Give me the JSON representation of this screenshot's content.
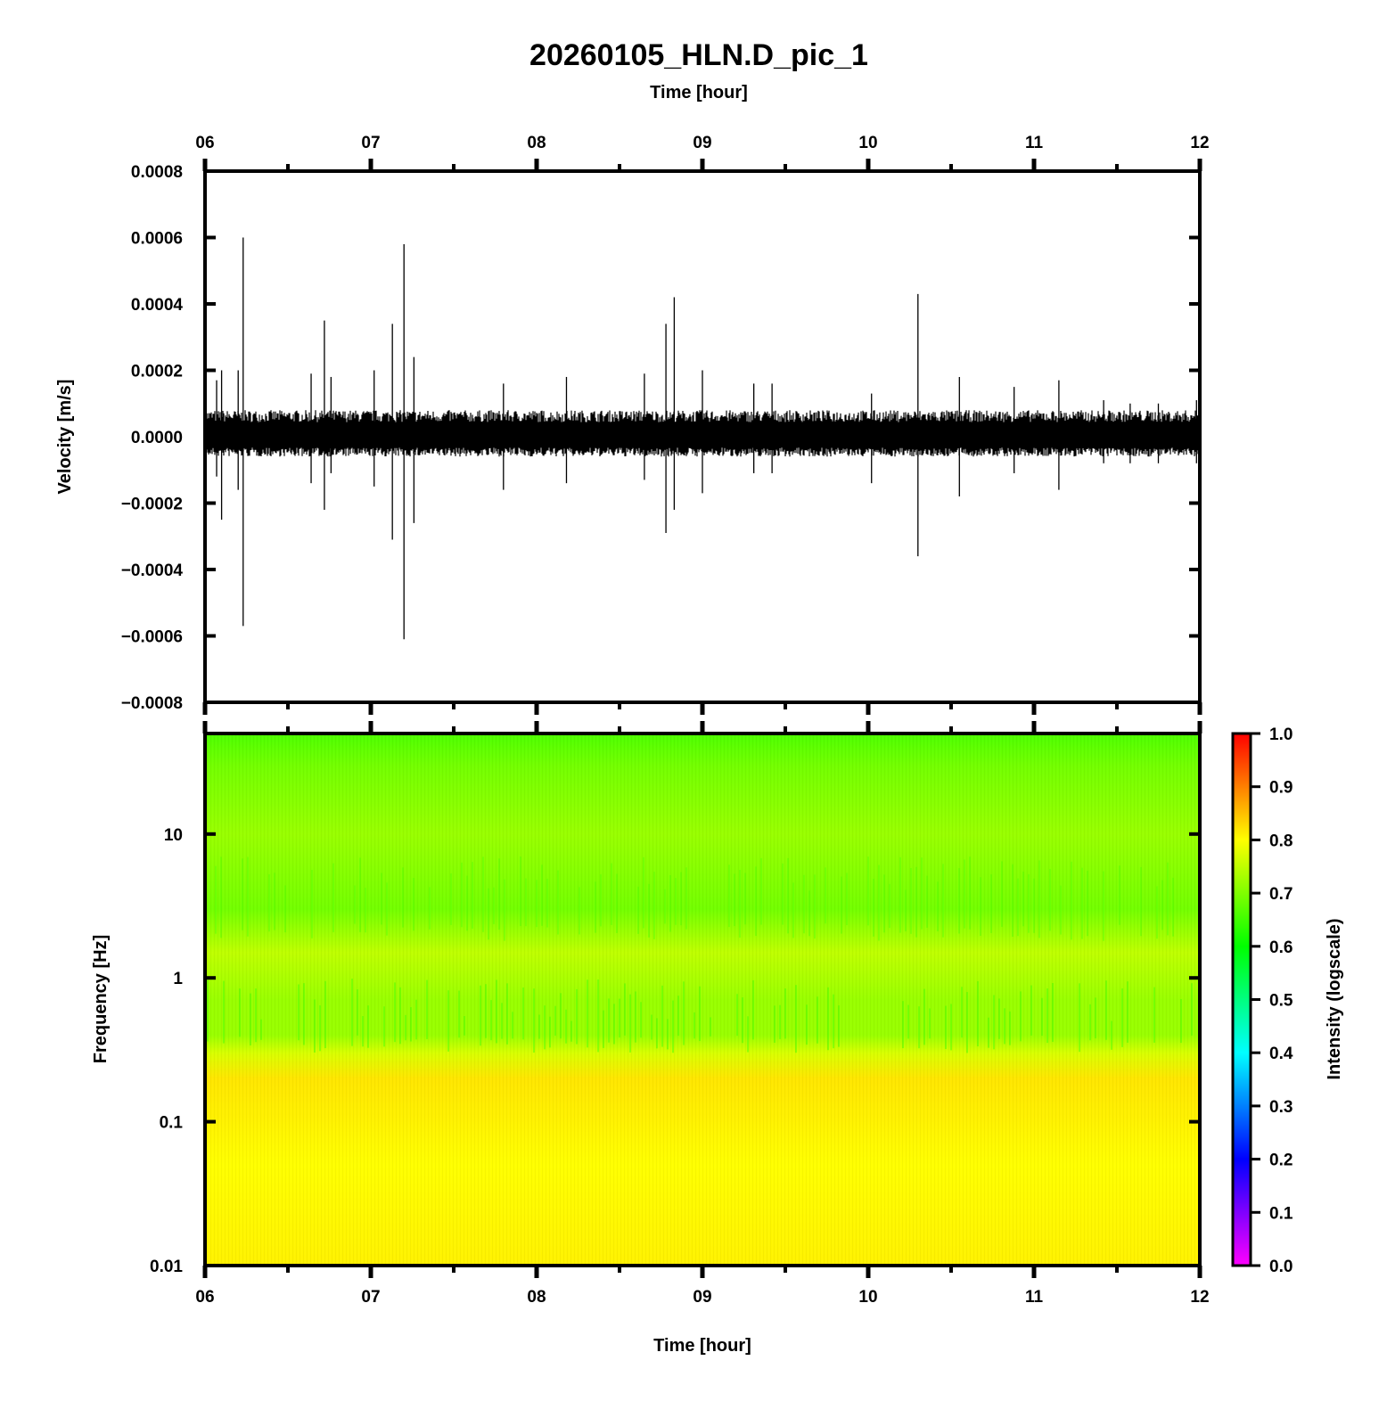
{
  "chart_data": [
    {
      "type": "line",
      "title": "20260105_HLN.D_pic_1",
      "xlabel": "Time [hour]",
      "ylabel": "Velocity [m/s]",
      "xlim": [
        6,
        12
      ],
      "ylim": [
        -0.0008,
        0.0008
      ],
      "x_tick_labels": [
        "06",
        "07",
        "08",
        "09",
        "10",
        "11",
        "12"
      ],
      "y_ticks": [
        -0.0008,
        -0.0006,
        -0.0004,
        -0.0002,
        0,
        0.0002,
        0.0004,
        0.0006,
        0.0008
      ],
      "y_tick_labels": [
        "−0.0008",
        "−0.0006",
        "−0.0004",
        "−0.0002",
        "0.0000",
        "0.0002",
        "0.0004",
        "0.0006",
        "0.0008"
      ],
      "noise_envelope": {
        "upper": 8e-05,
        "lower": -6e-05
      },
      "spikes": [
        {
          "x": 6.07,
          "max": 0.00017,
          "min": -0.00012
        },
        {
          "x": 6.1,
          "max": 0.0002,
          "min": -0.00025
        },
        {
          "x": 6.2,
          "max": 0.0002,
          "min": -0.00016
        },
        {
          "x": 6.23,
          "max": 0.0006,
          "min": -0.00057
        },
        {
          "x": 6.64,
          "max": 0.00019,
          "min": -0.00014
        },
        {
          "x": 6.72,
          "max": 0.00035,
          "min": -0.00022
        },
        {
          "x": 6.76,
          "max": 0.00018,
          "min": -0.00011
        },
        {
          "x": 7.02,
          "max": 0.0002,
          "min": -0.00015
        },
        {
          "x": 7.13,
          "max": 0.00034,
          "min": -0.00031
        },
        {
          "x": 7.2,
          "max": 0.00058,
          "min": -0.00061
        },
        {
          "x": 7.26,
          "max": 0.00024,
          "min": -0.00026
        },
        {
          "x": 7.8,
          "max": 0.00016,
          "min": -0.00016
        },
        {
          "x": 8.18,
          "max": 0.00018,
          "min": -0.00014
        },
        {
          "x": 8.65,
          "max": 0.00019,
          "min": -0.00013
        },
        {
          "x": 8.78,
          "max": 0.00034,
          "min": -0.00029
        },
        {
          "x": 8.83,
          "max": 0.00042,
          "min": -0.00022
        },
        {
          "x": 9.0,
          "max": 0.0002,
          "min": -0.00017
        },
        {
          "x": 9.31,
          "max": 0.00016,
          "min": -0.00011
        },
        {
          "x": 9.42,
          "max": 0.00016,
          "min": -0.00011
        },
        {
          "x": 10.02,
          "max": 0.00013,
          "min": -0.00014
        },
        {
          "x": 10.3,
          "max": 0.00043,
          "min": -0.00036
        },
        {
          "x": 10.55,
          "max": 0.00018,
          "min": -0.00018
        },
        {
          "x": 10.88,
          "max": 0.00015,
          "min": -0.00011
        },
        {
          "x": 11.15,
          "max": 0.00017,
          "min": -0.00016
        },
        {
          "x": 11.42,
          "max": 0.00011,
          "min": -8e-05
        },
        {
          "x": 11.58,
          "max": 0.0001,
          "min": -8e-05
        },
        {
          "x": 11.75,
          "max": 0.0001,
          "min": -8e-05
        },
        {
          "x": 11.98,
          "max": 0.00011,
          "min": -8e-05
        }
      ]
    },
    {
      "type": "heatmap",
      "xlabel": "Time [hour]",
      "ylabel": "Frequency [Hz]",
      "xlim": [
        6,
        12
      ],
      "ylim": [
        0.01,
        50
      ],
      "y_scale": "log",
      "x_tick_labels": [
        "06",
        "07",
        "08",
        "09",
        "10",
        "11",
        "12"
      ],
      "y_ticks": [
        0.01,
        0.1,
        1,
        10
      ],
      "y_tick_labels": [
        "0.01",
        "0.1",
        "1",
        "10"
      ],
      "colorbar": {
        "label": "Intensity (logscale)",
        "range": [
          0,
          1
        ],
        "ticks": [
          0,
          0.1,
          0.2,
          0.3,
          0.4,
          0.5,
          0.6,
          0.7,
          0.8,
          0.9,
          1
        ],
        "tick_labels": [
          "0.0",
          "0.1",
          "0.2",
          "0.3",
          "0.4",
          "0.5",
          "0.6",
          "0.7",
          "0.8",
          "0.9",
          "1.0"
        ],
        "colors": [
          "#ff00ff",
          "#0000ff",
          "#00ffff",
          "#00ff00",
          "#ffff00",
          "#ff0000"
        ]
      },
      "intensity_profile": [
        {
          "freq": 0.01,
          "intensity": 0.81
        },
        {
          "freq": 0.05,
          "intensity": 0.8
        },
        {
          "freq": 0.2,
          "intensity": 0.82
        },
        {
          "freq": 0.3,
          "intensity": 0.77
        },
        {
          "freq": 0.4,
          "intensity": 0.72
        },
        {
          "freq": 0.7,
          "intensity": 0.72
        },
        {
          "freq": 1.5,
          "intensity": 0.75
        },
        {
          "freq": 3,
          "intensity": 0.69
        },
        {
          "freq": 10,
          "intensity": 0.72
        },
        {
          "freq": 30,
          "intensity": 0.69
        },
        {
          "freq": 50,
          "intensity": 0.66
        }
      ]
    }
  ]
}
